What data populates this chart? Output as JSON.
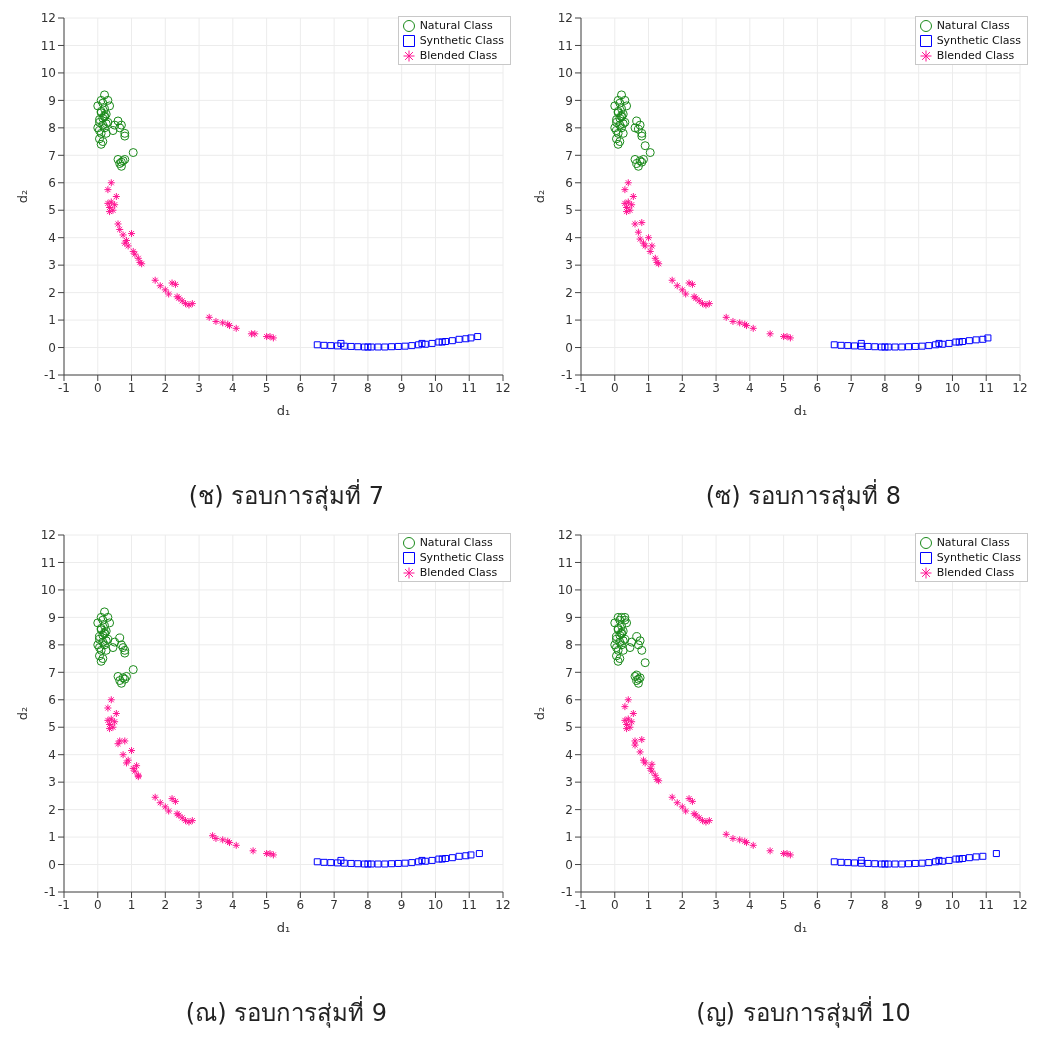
{
  "chart_data": [
    {
      "type": "scatter",
      "title": "(ช) รอบการสุ่มที่ 7",
      "xlabel": "d₁",
      "ylabel": "d₂",
      "xlim": [
        -1,
        12
      ],
      "ylim": [
        -1,
        12
      ],
      "xticks": [
        -1,
        0,
        1,
        2,
        3,
        4,
        5,
        6,
        7,
        8,
        9,
        10,
        11,
        12
      ],
      "yticks": [
        -1,
        0,
        1,
        2,
        3,
        4,
        5,
        6,
        7,
        8,
        9,
        10,
        11,
        12
      ],
      "grid": true,
      "legend": "top right",
      "series": [
        {
          "name": "Natural Class",
          "color": "#1a8a1a",
          "marker": "circle",
          "x": [
            0,
            0.05,
            0.1,
            0.15,
            0.2,
            0.25,
            0.05,
            0.1,
            0.15,
            0.2,
            0,
            0.1,
            0.2,
            0.3,
            0.05,
            0.15,
            0.25,
            0.1,
            0.2,
            0.35,
            0.45,
            0.5,
            0.6,
            0.65,
            0.7,
            0.8,
            0.8,
            0.6,
            0.65,
            0.7,
            0.75,
            0.8,
            0.7,
            1.05,
            0.2,
            0.15,
            0.3,
            0.05,
            0.1,
            0.25
          ],
          "values": [
            8,
            8.3,
            8.6,
            8.9,
            9.2,
            8.5,
            7.6,
            7.8,
            8.1,
            8.4,
            8.8,
            9,
            8.7,
            8.2,
            7.9,
            7.5,
            7.8,
            7.4,
            8,
            8.8,
            7.9,
            8.1,
            8.25,
            8,
            8.1,
            7.8,
            7.7,
            6.85,
            6.7,
            6.6,
            6.8,
            6.85,
            6.75,
            7.1,
            8.45,
            8.35,
            9,
            8.2,
            8.55,
            8.15
          ]
        },
        {
          "name": "Synthetic Class",
          "color": "#0000ff",
          "marker": "square",
          "x": [
            6.5,
            6.7,
            6.9,
            7.1,
            7.3,
            7.5,
            7.7,
            7.9,
            8.1,
            8.3,
            8.5,
            8.7,
            8.9,
            9.1,
            9.3,
            9.5,
            9.7,
            9.9,
            10.1,
            10.3,
            10.5,
            10.7,
            10.9,
            11.05,
            11.25,
            7.2,
            8,
            9.6,
            10.2
          ],
          "values": [
            0.1,
            0.08,
            0.07,
            0.06,
            0.05,
            0.04,
            0.03,
            0.02,
            0.02,
            0.02,
            0.02,
            0.03,
            0.04,
            0.05,
            0.07,
            0.1,
            0.12,
            0.15,
            0.2,
            0.22,
            0.25,
            0.3,
            0.32,
            0.35,
            0.4,
            0.15,
            0.02,
            0.15,
            0.2
          ]
        },
        {
          "name": "Blended Class",
          "color": "#ff1493",
          "marker": "cross",
          "x": [
            0.3,
            0.4,
            0.55,
            0.3,
            0.35,
            0.4,
            0.45,
            0.5,
            0.35,
            0.6,
            0.65,
            0.75,
            0.8,
            0.9,
            0.85,
            1,
            1.05,
            1.1,
            1.2,
            1.25,
            1.3,
            1.7,
            1.85,
            2,
            2.1,
            2.2,
            2.3,
            2.35,
            2.4,
            2.5,
            2.6,
            2.7,
            2.8,
            3.3,
            3.5,
            3.7,
            3.85,
            3.9,
            4.1,
            4.55,
            4.65,
            5,
            5.1,
            5.2
          ],
          "values": [
            5.75,
            6,
            5.5,
            5.25,
            5.1,
            5.3,
            5,
            5.2,
            4.95,
            4.5,
            4.3,
            4.1,
            3.8,
            3.7,
            3.9,
            4.15,
            3.5,
            3.4,
            3.25,
            3.1,
            3.05,
            2.45,
            2.25,
            2.1,
            1.95,
            2.35,
            2.3,
            1.85,
            1.8,
            1.7,
            1.6,
            1.55,
            1.6,
            1.1,
            0.95,
            0.9,
            0.85,
            0.8,
            0.7,
            0.5,
            0.5,
            0.4,
            0.4,
            0.35
          ]
        }
      ]
    },
    {
      "type": "scatter",
      "title": "(ซ) รอบการสุ่มที่ 8",
      "xlabel": "d₁",
      "ylabel": "d₂",
      "xlim": [
        -1,
        12
      ],
      "ylim": [
        -1,
        12
      ],
      "xticks": [
        -1,
        0,
        1,
        2,
        3,
        4,
        5,
        6,
        7,
        8,
        9,
        10,
        11,
        12
      ],
      "yticks": [
        -1,
        0,
        1,
        2,
        3,
        4,
        5,
        6,
        7,
        8,
        9,
        10,
        11,
        12
      ],
      "grid": true,
      "legend": "top right",
      "series": [
        {
          "name": "Natural Class",
          "color": "#1a8a1a",
          "marker": "circle",
          "x": [
            0,
            0.05,
            0.1,
            0.15,
            0.2,
            0.25,
            0.05,
            0.1,
            0.15,
            0.2,
            0,
            0.1,
            0.2,
            0.3,
            0.05,
            0.15,
            0.25,
            0.1,
            0.2,
            0.35,
            0.6,
            0.65,
            0.7,
            0.75,
            0.8,
            0.8,
            0.9,
            1.05,
            0.6,
            0.65,
            0.7,
            0.75,
            0.8,
            0.85,
            0.2,
            0.15,
            0.3,
            0.05,
            0.1,
            0.25
          ],
          "values": [
            8,
            8.3,
            8.6,
            8.9,
            9.2,
            8.5,
            7.6,
            7.8,
            8.1,
            8.4,
            8.8,
            9,
            8.7,
            8.2,
            7.9,
            7.5,
            7.8,
            7.4,
            8,
            8.8,
            8,
            8.25,
            7.95,
            8.1,
            7.8,
            7.7,
            7.35,
            7.1,
            6.85,
            6.7,
            6.6,
            6.8,
            6.75,
            6.85,
            8.45,
            8.35,
            9,
            8.2,
            8.55,
            8.15
          ]
        },
        {
          "name": "Synthetic Class",
          "color": "#0000ff",
          "marker": "square",
          "x": [
            6.5,
            6.7,
            6.9,
            7.1,
            7.3,
            7.5,
            7.7,
            7.9,
            8.1,
            8.3,
            8.5,
            8.7,
            8.9,
            9.1,
            9.3,
            9.5,
            9.7,
            9.9,
            10.1,
            10.3,
            10.5,
            10.7,
            10.9,
            11.05,
            7.3,
            8,
            9.6,
            10.2
          ],
          "values": [
            0.1,
            0.08,
            0.07,
            0.06,
            0.05,
            0.04,
            0.03,
            0.02,
            0.02,
            0.02,
            0.02,
            0.03,
            0.04,
            0.05,
            0.07,
            0.1,
            0.12,
            0.15,
            0.2,
            0.22,
            0.25,
            0.28,
            0.3,
            0.35,
            0.15,
            0.02,
            0.15,
            0.2
          ]
        },
        {
          "name": "Blended Class",
          "color": "#ff1493",
          "marker": "cross",
          "x": [
            0.3,
            0.4,
            0.55,
            0.3,
            0.35,
            0.4,
            0.45,
            0.5,
            0.35,
            0.6,
            0.8,
            0.7,
            0.75,
            0.85,
            0.9,
            1,
            1.05,
            1.1,
            1.2,
            1.25,
            1.3,
            1.7,
            1.85,
            2,
            2.1,
            2.2,
            2.3,
            2.35,
            2.4,
            2.5,
            2.6,
            2.7,
            2.8,
            3.3,
            3.5,
            3.7,
            3.85,
            3.9,
            4.1,
            4.6,
            5,
            5.1,
            5.2
          ],
          "values": [
            5.75,
            6,
            5.5,
            5.25,
            5.1,
            5.3,
            5,
            5.2,
            4.95,
            4.5,
            4.55,
            4.2,
            3.95,
            3.8,
            3.7,
            4,
            3.5,
            3.7,
            3.25,
            3.1,
            3.05,
            2.45,
            2.25,
            2.1,
            1.95,
            2.35,
            2.3,
            1.85,
            1.8,
            1.7,
            1.6,
            1.55,
            1.6,
            1.1,
            0.95,
            0.9,
            0.85,
            0.8,
            0.7,
            0.5,
            0.4,
            0.4,
            0.35
          ]
        }
      ]
    },
    {
      "type": "scatter",
      "title": "(ณ) รอบการสุ่มที่ 9",
      "xlabel": "d₁",
      "ylabel": "d₂",
      "xlim": [
        -1,
        12
      ],
      "ylim": [
        -1,
        12
      ],
      "xticks": [
        -1,
        0,
        1,
        2,
        3,
        4,
        5,
        6,
        7,
        8,
        9,
        10,
        11,
        12
      ],
      "yticks": [
        -1,
        0,
        1,
        2,
        3,
        4,
        5,
        6,
        7,
        8,
        9,
        10,
        11,
        12
      ],
      "grid": true,
      "legend": "top right",
      "series": [
        {
          "name": "Natural Class",
          "color": "#1a8a1a",
          "marker": "circle",
          "x": [
            0,
            0.05,
            0.1,
            0.15,
            0.2,
            0.25,
            0.05,
            0.1,
            0.15,
            0.2,
            0,
            0.1,
            0.2,
            0.3,
            0.05,
            0.15,
            0.25,
            0.1,
            0.2,
            0.35,
            0.45,
            0.5,
            0.65,
            0.7,
            0.75,
            0.8,
            0.8,
            0.6,
            0.65,
            0.7,
            0.75,
            0.8,
            0.85,
            1.05,
            0.2,
            0.15,
            0.3,
            0.05,
            0.1,
            0.25
          ],
          "values": [
            8,
            8.3,
            8.6,
            8.9,
            9.2,
            8.5,
            7.6,
            7.8,
            8.1,
            8.4,
            8.8,
            9,
            8.7,
            8.2,
            7.9,
            7.5,
            7.8,
            7.4,
            8,
            8.8,
            7.9,
            8.1,
            8.25,
            8,
            7.9,
            7.8,
            7.7,
            6.85,
            6.7,
            6.6,
            6.8,
            6.75,
            6.85,
            7.1,
            8.45,
            8.35,
            9,
            8.2,
            8.55,
            8.15
          ]
        },
        {
          "name": "Synthetic Class",
          "color": "#0000ff",
          "marker": "square",
          "x": [
            6.5,
            6.7,
            6.9,
            7.1,
            7.3,
            7.5,
            7.7,
            7.9,
            8.1,
            8.3,
            8.5,
            8.7,
            8.9,
            9.1,
            9.3,
            9.5,
            9.7,
            9.9,
            10.1,
            10.3,
            10.5,
            10.7,
            10.9,
            11.05,
            11.3,
            7.2,
            8,
            9.6,
            10.2
          ],
          "values": [
            0.1,
            0.08,
            0.07,
            0.06,
            0.05,
            0.04,
            0.03,
            0.02,
            0.02,
            0.02,
            0.02,
            0.03,
            0.04,
            0.05,
            0.07,
            0.1,
            0.12,
            0.15,
            0.2,
            0.22,
            0.25,
            0.3,
            0.32,
            0.35,
            0.4,
            0.15,
            0.02,
            0.15,
            0.2
          ]
        },
        {
          "name": "Blended Class",
          "color": "#ff1493",
          "marker": "cross",
          "x": [
            0.3,
            0.4,
            0.55,
            0.3,
            0.35,
            0.4,
            0.45,
            0.5,
            0.35,
            0.6,
            0.65,
            0.8,
            0.75,
            0.9,
            0.85,
            1,
            1.05,
            1.1,
            1.2,
            1.15,
            1.2,
            1.7,
            1.85,
            2,
            2.1,
            2.2,
            2.3,
            2.35,
            2.4,
            2.5,
            2.6,
            2.7,
            2.8,
            3.4,
            3.5,
            3.7,
            3.85,
            3.9,
            4.1,
            4.6,
            5,
            5.1,
            5.2
          ],
          "values": [
            5.7,
            6,
            5.5,
            5.25,
            5.1,
            5.3,
            5,
            5.2,
            4.95,
            4.4,
            4.5,
            4.5,
            4.0,
            3.8,
            3.7,
            4.15,
            3.5,
            3.4,
            3.25,
            3.6,
            3.2,
            2.45,
            2.25,
            2.1,
            1.95,
            2.4,
            2.3,
            1.85,
            1.8,
            1.7,
            1.6,
            1.55,
            1.6,
            1.05,
            0.95,
            0.9,
            0.85,
            0.8,
            0.7,
            0.5,
            0.4,
            0.4,
            0.35
          ]
        }
      ]
    },
    {
      "type": "scatter",
      "title": "(ญ) รอบการสุ่มที่ 10",
      "xlabel": "d₁",
      "ylabel": "d₂",
      "xlim": [
        -1,
        12
      ],
      "ylim": [
        -1,
        12
      ],
      "xticks": [
        -1,
        0,
        1,
        2,
        3,
        4,
        5,
        6,
        7,
        8,
        9,
        10,
        11,
        12
      ],
      "yticks": [
        -1,
        0,
        1,
        2,
        3,
        4,
        5,
        6,
        7,
        8,
        9,
        10,
        11,
        12
      ],
      "grid": true,
      "legend": "top right",
      "series": [
        {
          "name": "Natural Class",
          "color": "#1a8a1a",
          "marker": "circle",
          "x": [
            0,
            0.05,
            0.1,
            0.15,
            0.2,
            0.25,
            0.05,
            0.1,
            0.15,
            0.2,
            0,
            0.1,
            0.2,
            0.3,
            0.05,
            0.15,
            0.25,
            0.1,
            0.2,
            0.35,
            0.45,
            0.5,
            0.65,
            0.7,
            0.75,
            0.8,
            0.9,
            0.6,
            0.65,
            0.7,
            0.75,
            0.7,
            0.65,
            0.3,
            0.2,
            0.15,
            0.3,
            0.05,
            0.1,
            0.25
          ],
          "values": [
            8,
            8.3,
            8.6,
            8.9,
            9,
            8.5,
            7.6,
            7.8,
            8.1,
            8.4,
            8.8,
            9,
            8.7,
            8.2,
            7.9,
            7.5,
            7.8,
            7.4,
            8,
            8.8,
            7.9,
            8.1,
            8.3,
            8,
            8.15,
            7.8,
            7.35,
            6.85,
            6.7,
            6.6,
            6.8,
            6.75,
            6.9,
            8.9,
            8.45,
            8.35,
            9,
            8.2,
            8.55,
            8.15
          ]
        },
        {
          "name": "Synthetic Class",
          "color": "#0000ff",
          "marker": "square",
          "x": [
            6.5,
            6.7,
            6.9,
            7.1,
            7.3,
            7.5,
            7.7,
            7.9,
            8.1,
            8.3,
            8.5,
            8.7,
            8.9,
            9.1,
            9.3,
            9.5,
            9.7,
            9.9,
            10.1,
            10.3,
            10.5,
            10.7,
            10.9,
            11.3,
            7.3,
            8,
            9.6,
            10.2
          ],
          "values": [
            0.1,
            0.08,
            0.07,
            0.06,
            0.05,
            0.04,
            0.03,
            0.02,
            0.02,
            0.02,
            0.02,
            0.03,
            0.04,
            0.05,
            0.07,
            0.1,
            0.12,
            0.15,
            0.2,
            0.22,
            0.25,
            0.28,
            0.3,
            0.4,
            0.15,
            0.02,
            0.15,
            0.2
          ]
        },
        {
          "name": "Blended Class",
          "color": "#ff1493",
          "marker": "cross",
          "x": [
            0.3,
            0.4,
            0.55,
            0.3,
            0.35,
            0.4,
            0.45,
            0.5,
            0.35,
            0.6,
            0.8,
            0.6,
            0.75,
            0.85,
            0.9,
            1.1,
            1.05,
            1.1,
            1.2,
            1.25,
            1.3,
            1.7,
            1.85,
            2,
            2.1,
            2.2,
            2.3,
            2.35,
            2.4,
            2.5,
            2.6,
            2.7,
            2.8,
            3.3,
            3.5,
            3.7,
            3.85,
            3.9,
            4.1,
            4.6,
            5,
            5.1,
            5.2
          ],
          "values": [
            5.75,
            6,
            5.5,
            5.25,
            5.1,
            5.3,
            5,
            5.2,
            4.95,
            4.5,
            4.55,
            4.35,
            4.1,
            3.8,
            3.7,
            3.65,
            3.5,
            3.4,
            3.25,
            3.1,
            3.05,
            2.45,
            2.25,
            2.1,
            1.95,
            2.4,
            2.3,
            1.85,
            1.8,
            1.7,
            1.6,
            1.55,
            1.6,
            1.1,
            0.95,
            0.9,
            0.85,
            0.8,
            0.7,
            0.5,
            0.4,
            0.4,
            0.35
          ]
        }
      ]
    }
  ]
}
